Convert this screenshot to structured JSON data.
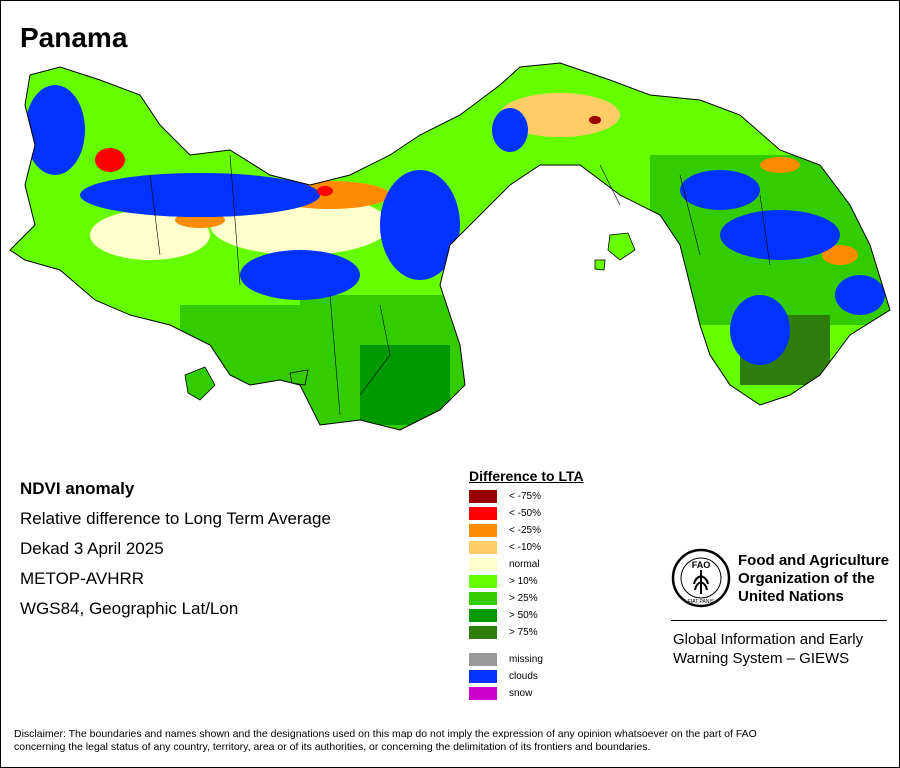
{
  "map": {
    "country": "Panama",
    "product": "NDVI anomaly",
    "description": "Relative difference to Long Term Average",
    "period": "Dekad 3 April 2025",
    "sensor": "METOP-AVHRR",
    "projection": "WGS84, Geographic Lat/Lon"
  },
  "legend": {
    "title": "Difference to LTA",
    "classes": [
      {
        "label": "< -75%",
        "color": "#990000"
      },
      {
        "label": "< -50%",
        "color": "#ff0000"
      },
      {
        "label": "< -25%",
        "color": "#ff8c00"
      },
      {
        "label": "< -10%",
        "color": "#ffcc66"
      },
      {
        "label": "normal",
        "color": "#ffffcc"
      },
      {
        "label": "> 10%",
        "color": "#66ff00"
      },
      {
        "label": "> 25%",
        "color": "#33cc00"
      },
      {
        "label": "> 50%",
        "color": "#009900"
      },
      {
        "label": "> 75%",
        "color": "#2e7d0a"
      }
    ],
    "other": [
      {
        "label": "missing",
        "color": "#999999"
      },
      {
        "label": "clouds",
        "color": "#0033ff"
      },
      {
        "label": "snow",
        "color": "#cc00cc"
      }
    ]
  },
  "organization": {
    "name_line1": "Food and Agriculture",
    "name_line2": "Organization of the",
    "name_line3": "United Nations",
    "logo_text": "FAO",
    "logo_motto": "FIAT PANIS",
    "system_line1": "Global Information and Early",
    "system_line2": "Warning System – GIEWS"
  },
  "disclaimer_line1": "Disclaimer: The boundaries and names shown and the designations used on this map do not imply the expression of any opinion whatsoever on the part of FAO",
  "disclaimer_line2": "concerning the legal status of any country, territory, area or of its authorities, or concerning the delimitation of its frontiers and boundaries."
}
